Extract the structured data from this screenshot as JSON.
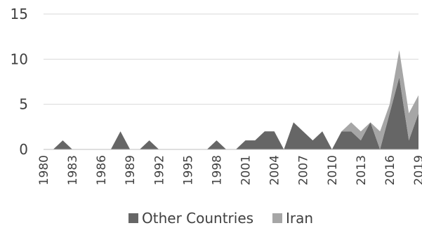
{
  "chart_data": {
    "type": "area",
    "stacked": true,
    "x": [
      1980,
      1981,
      1982,
      1983,
      1984,
      1985,
      1986,
      1987,
      1988,
      1989,
      1990,
      1991,
      1992,
      1993,
      1994,
      1995,
      1996,
      1997,
      1998,
      1999,
      2000,
      2001,
      2002,
      2003,
      2004,
      2005,
      2006,
      2007,
      2008,
      2009,
      2010,
      2011,
      2012,
      2013,
      2014,
      2015,
      2016,
      2017,
      2018,
      2019
    ],
    "x_tick_labels": [
      "1980",
      "1983",
      "1986",
      "1989",
      "1992",
      "1995",
      "1998",
      "2001",
      "2004",
      "2007",
      "2010",
      "2013",
      "2016",
      "2019"
    ],
    "y_ticks": [
      "0",
      "5",
      "10",
      "15"
    ],
    "ylim": [
      0,
      15
    ],
    "grid": "horizontal",
    "legend_position": "bottom",
    "series": [
      {
        "name": "Other Countries",
        "color": "#666666",
        "values": [
          0,
          0,
          1,
          0,
          0,
          0,
          0,
          0,
          2,
          0,
          0,
          1,
          0,
          0,
          0,
          0,
          0,
          0,
          1,
          0,
          0,
          1,
          1,
          2,
          2,
          0,
          3,
          2,
          1,
          2,
          0,
          2,
          2,
          1,
          3,
          0,
          4,
          8,
          1,
          4
        ]
      },
      {
        "name": "Iran",
        "color": "#a6a6a6",
        "values": [
          0,
          0,
          0,
          0,
          0,
          0,
          0,
          0,
          0,
          0,
          0,
          0,
          0,
          0,
          0,
          0,
          0,
          0,
          0,
          0,
          0,
          0,
          0,
          0,
          0,
          0,
          0,
          0,
          0,
          0,
          0,
          0,
          1,
          1,
          0,
          2,
          1,
          3,
          3,
          2
        ]
      }
    ]
  }
}
